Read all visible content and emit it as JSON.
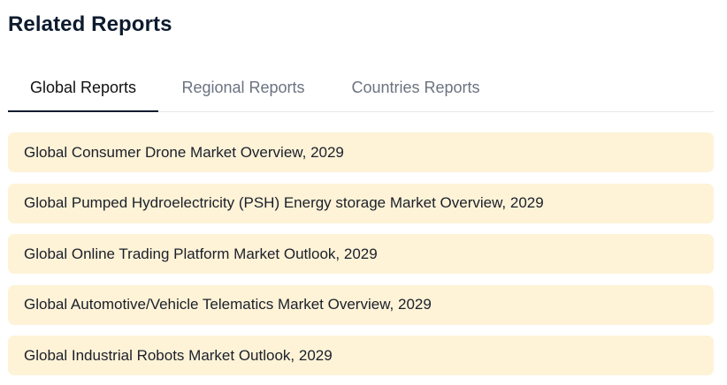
{
  "section": {
    "title": "Related Reports"
  },
  "tabs": [
    {
      "label": "Global Reports",
      "active": true
    },
    {
      "label": "Regional Reports",
      "active": false
    },
    {
      "label": "Countries Reports",
      "active": false
    }
  ],
  "reports": [
    {
      "label": "Global Consumer Drone Market Overview, 2029"
    },
    {
      "label": "Global Pumped Hydroelectricity (PSH) Energy storage Market Overview, 2029"
    },
    {
      "label": "Global Online Trading Platform Market Outlook, 2029"
    },
    {
      "label": "Global Automotive/Vehicle Telematics Market Overview, 2029"
    },
    {
      "label": "Global Industrial Robots Market Outlook, 2029"
    }
  ],
  "colors": {
    "title": "#0d1b2e",
    "active_tab_underline": "#0d1b2e",
    "inactive_tab_text": "#6b7280",
    "item_background": "#fef3d7"
  }
}
